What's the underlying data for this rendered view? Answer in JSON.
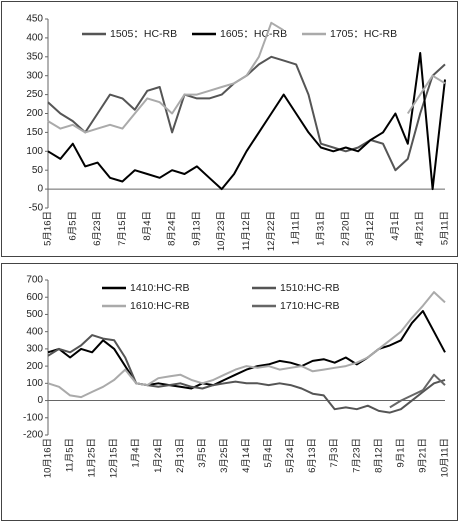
{
  "chart_data": [
    {
      "type": "line",
      "categories": [
        "5月16日",
        null,
        "6月5日",
        null,
        "6月23日",
        null,
        "7月15日",
        null,
        "8月4日",
        null,
        "8月24日",
        null,
        "9月13日",
        null,
        "10月23日",
        null,
        "11月12日",
        null,
        "12月22日",
        null,
        "1月11日",
        null,
        "1月31日",
        null,
        "2月20日",
        null,
        "3月12日",
        null,
        "4月1日",
        null,
        "4月21日",
        null,
        "5月11日"
      ],
      "series": [
        {
          "name": "1505：HC-RB",
          "color": "#555555",
          "values": [
            230,
            200,
            180,
            150,
            200,
            250,
            240,
            210,
            260,
            270,
            150,
            250,
            240,
            240,
            250,
            280,
            300,
            330,
            350,
            340,
            330,
            250,
            120,
            110,
            100,
            110,
            130,
            120,
            50,
            80,
            200,
            300,
            330
          ]
        },
        {
          "name": "1605：HC-RB",
          "color": "#000000",
          "values": [
            100,
            80,
            120,
            60,
            70,
            30,
            20,
            50,
            40,
            30,
            50,
            40,
            60,
            30,
            0,
            40,
            100,
            150,
            200,
            250,
            200,
            150,
            110,
            100,
            110,
            100,
            130,
            150,
            200,
            120,
            360,
            0,
            290
          ]
        },
        {
          "name": "1705：HC-RB",
          "color": "#aaaaaa",
          "values": [
            180,
            160,
            170,
            150,
            160,
            170,
            160,
            200,
            240,
            230,
            200,
            250,
            250,
            260,
            270,
            280,
            300,
            350,
            440,
            420,
            null,
            null,
            null,
            null,
            null,
            null,
            null,
            null,
            null,
            200,
            250,
            300,
            280
          ]
        }
      ],
      "ylim": [
        -50,
        450
      ],
      "yticks": [
        -50,
        0,
        50,
        100,
        150,
        200,
        250,
        300,
        350,
        400,
        450
      ]
    },
    {
      "type": "line",
      "categories": [
        "10月16日",
        null,
        "11月5日",
        null,
        "11月25日",
        null,
        "12月15日",
        null,
        "1月4日",
        null,
        "1月24日",
        null,
        "2月13日",
        null,
        "3月5日",
        null,
        "3月25日",
        null,
        "4月14日",
        null,
        "5月4日",
        null,
        "5月24日",
        null,
        "6月13日",
        null,
        "7月3日",
        null,
        "7月23日",
        null,
        "8月12日",
        null,
        "9月1日",
        null,
        "9月21日",
        null,
        "10月11日"
      ],
      "series": [
        {
          "name": "1410:HC-RB",
          "color": "#000000",
          "values": [
            280,
            300,
            250,
            300,
            280,
            350,
            300,
            200,
            100,
            90,
            100,
            90,
            80,
            70,
            100,
            90,
            120,
            150,
            180,
            200,
            210,
            230,
            220,
            200,
            230,
            240,
            220,
            250,
            210,
            250,
            300,
            320,
            350,
            450,
            520,
            400,
            280
          ]
        },
        {
          "name": "1510:HC-RB",
          "color": "#555555",
          "values": [
            260,
            300,
            280,
            320,
            380,
            360,
            350,
            250,
            100,
            90,
            80,
            90,
            100,
            80,
            70,
            90,
            100,
            110,
            100,
            100,
            90,
            100,
            90,
            70,
            40,
            30,
            -50,
            -40,
            -50,
            -30,
            -60,
            -70,
            -50,
            0,
            50,
            100,
            120
          ]
        },
        {
          "name": "1610:HC-RB",
          "color": "#aaaaaa",
          "values": [
            100,
            80,
            30,
            20,
            50,
            80,
            120,
            180,
            100,
            90,
            130,
            140,
            150,
            120,
            100,
            120,
            150,
            180,
            200,
            190,
            200,
            180,
            190,
            200,
            170,
            180,
            190,
            200,
            220,
            250,
            300,
            350,
            400,
            480,
            550,
            630,
            570
          ]
        },
        {
          "name": "1710:HC-RB",
          "color": "#666666",
          "values": [
            null,
            null,
            null,
            null,
            null,
            null,
            null,
            null,
            null,
            null,
            null,
            null,
            null,
            null,
            null,
            null,
            null,
            null,
            null,
            null,
            null,
            null,
            null,
            null,
            null,
            null,
            null,
            null,
            null,
            null,
            null,
            -40,
            0,
            30,
            60,
            150,
            90
          ]
        }
      ],
      "ylim": [
        -200,
        700
      ],
      "yticks": [
        -200,
        -100,
        0,
        100,
        200,
        300,
        400,
        500,
        600,
        700
      ]
    }
  ]
}
